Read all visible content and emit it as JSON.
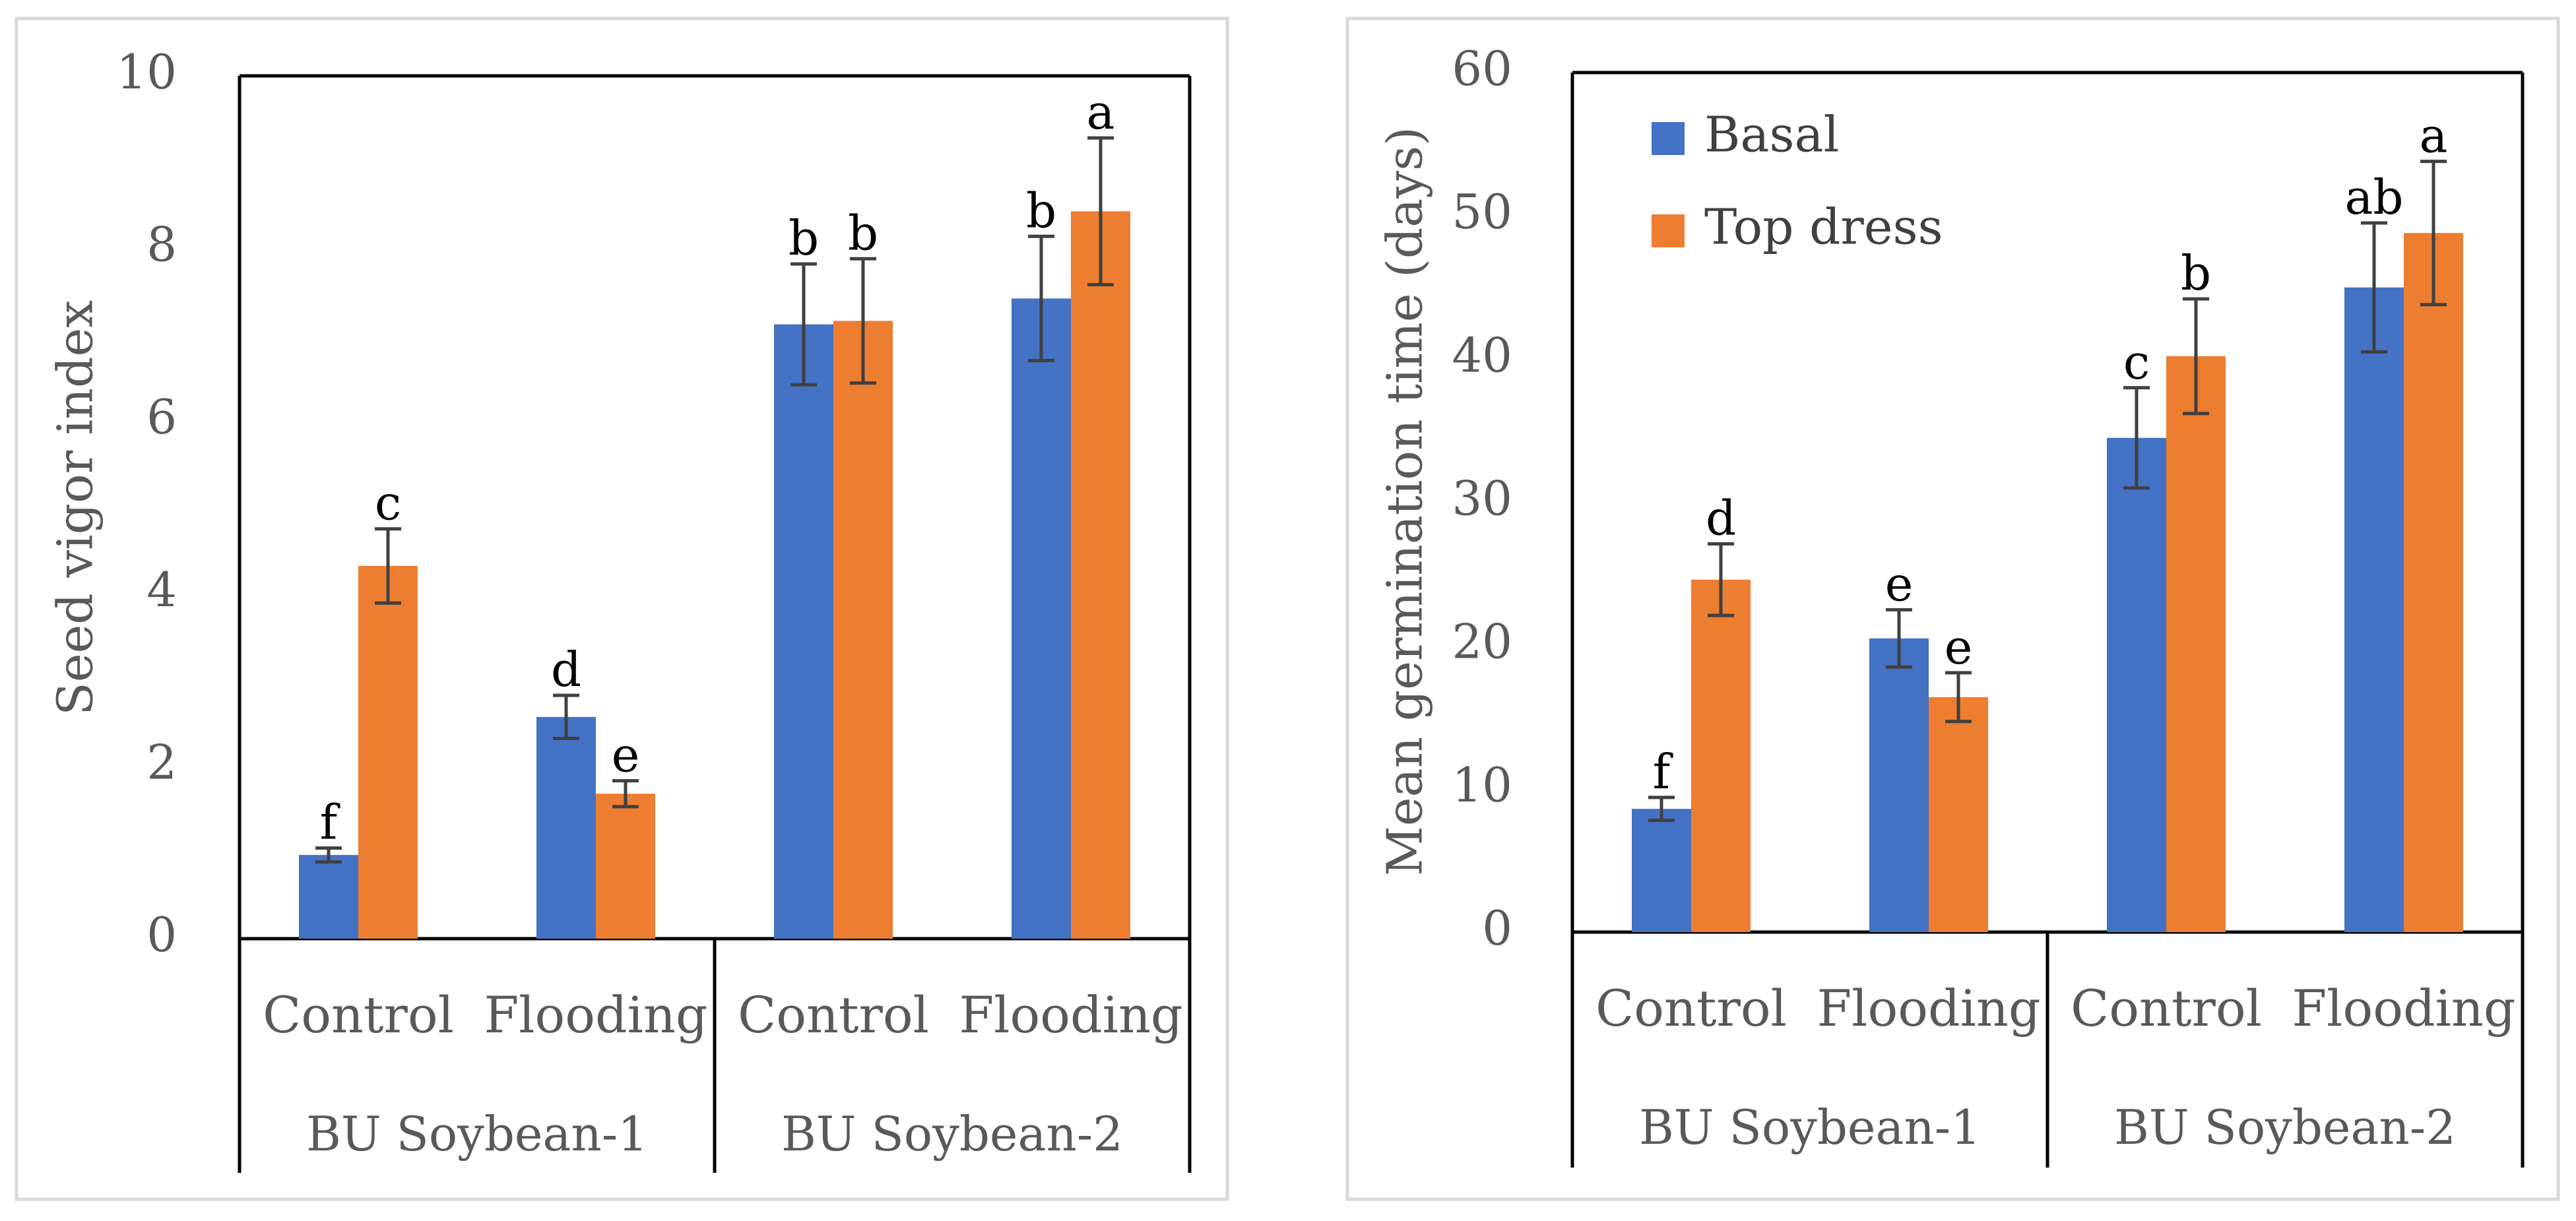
{
  "colors": {
    "basal": "#4472C4",
    "top_dress": "#ED7D31",
    "error_bar": "#404040",
    "axis": "#000000",
    "text": "#595959",
    "panel_border": "#D9D9D9"
  },
  "chart_data": [
    {
      "type": "bar",
      "title": "",
      "xlabel": "",
      "ylabel": "Seed vigor index",
      "ylim": [
        0,
        10
      ],
      "ytick_step": 2,
      "yticks": [
        "0",
        "2",
        "4",
        "6",
        "8",
        "10"
      ],
      "categories": [
        "Control",
        "Flooding",
        "Control",
        "Flooding"
      ],
      "groups": [
        "BU Soybean-1",
        "BU Soybean-2"
      ],
      "legend": null,
      "series": [
        {
          "name": "Basal",
          "values": [
            0.97,
            2.57,
            7.12,
            7.42
          ],
          "errors": [
            0.08,
            0.25,
            0.7,
            0.72
          ],
          "letters": [
            "f",
            "d",
            "b",
            "b"
          ]
        },
        {
          "name": "Top dress",
          "values": [
            4.32,
            1.68,
            7.16,
            8.43
          ],
          "errors": [
            0.43,
            0.15,
            0.72,
            0.85
          ],
          "letters": [
            "c",
            "e",
            "b",
            "a"
          ]
        }
      ]
    },
    {
      "type": "bar",
      "title": "",
      "xlabel": "",
      "ylabel": "Mean germination time (days)",
      "ylim": [
        0,
        60
      ],
      "ytick_step": 10,
      "yticks": [
        "0",
        "10",
        "20",
        "30",
        "40",
        "50",
        "60"
      ],
      "categories": [
        "Control",
        "Flooding",
        "Control",
        "Flooding"
      ],
      "groups": [
        "BU Soybean-1",
        "BU Soybean-2"
      ],
      "legend": {
        "placement": "top-left",
        "entries": [
          "Basal",
          "Top dress"
        ]
      },
      "series": [
        {
          "name": "Basal",
          "values": [
            8.6,
            20.5,
            34.5,
            45.0
          ],
          "errors": [
            0.8,
            2.0,
            3.5,
            4.5
          ],
          "letters": [
            "f",
            "e",
            "c",
            "ab"
          ]
        },
        {
          "name": "Top dress",
          "values": [
            24.6,
            16.4,
            40.2,
            48.8
          ],
          "errors": [
            2.5,
            1.7,
            4.0,
            5.0
          ],
          "letters": [
            "d",
            "e",
            "b",
            "a"
          ]
        }
      ]
    }
  ]
}
